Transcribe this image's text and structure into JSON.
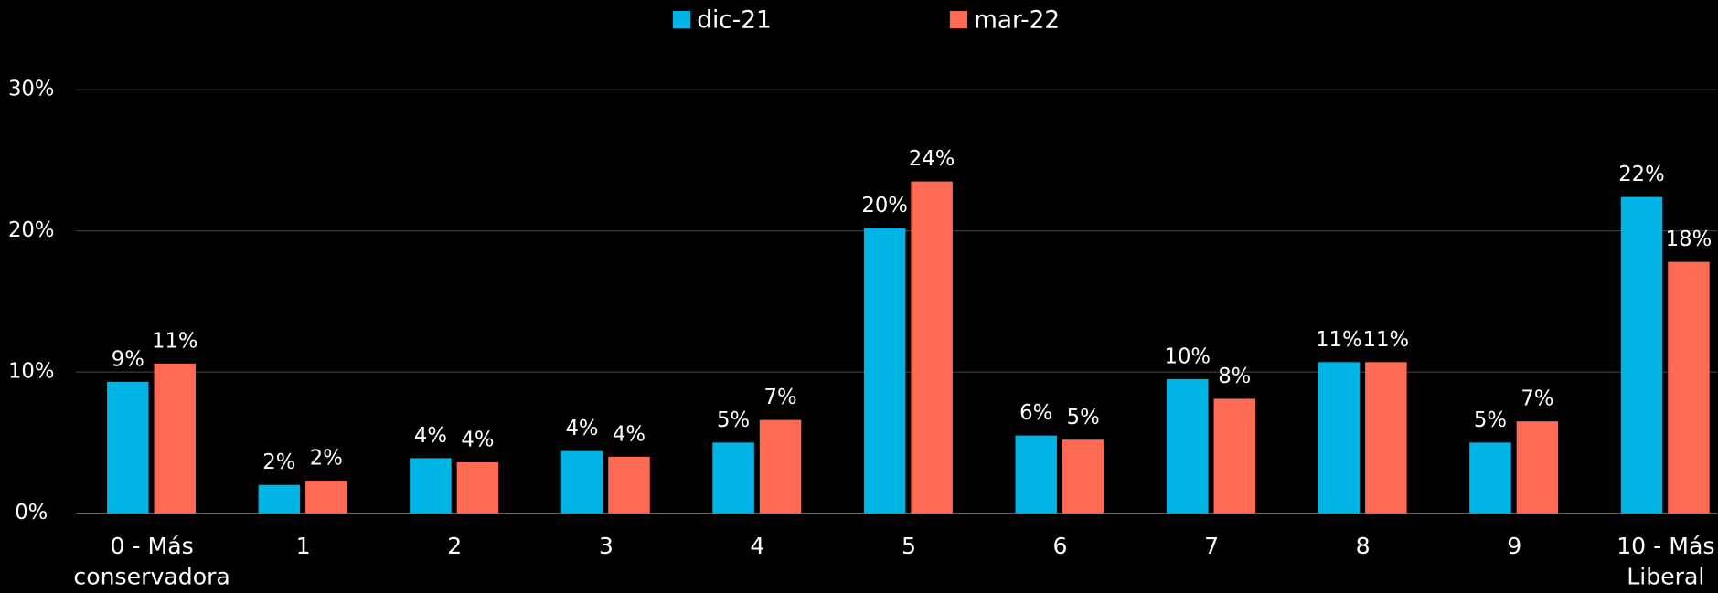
{
  "chart_data": {
    "type": "bar",
    "categories": [
      "0 - Más conservadora",
      "1",
      "2",
      "3",
      "4",
      "5",
      "6",
      "7",
      "8",
      "9",
      "10 - Más Liberal"
    ],
    "series": [
      {
        "name": "dic-21",
        "color": "#00b4e6",
        "values": [
          9.3,
          2.0,
          3.9,
          4.4,
          5.0,
          20.2,
          5.5,
          9.5,
          10.7,
          5.0,
          22.4
        ],
        "value_labels": [
          "9%",
          "2%",
          "4%",
          "4%",
          "5%",
          "20%",
          "6%",
          "10%",
          "11%",
          "5%",
          "22%"
        ]
      },
      {
        "name": "mar-22",
        "color": "#ff6a55",
        "values": [
          10.6,
          2.3,
          3.6,
          4.0,
          6.6,
          23.5,
          5.2,
          8.1,
          10.7,
          6.5,
          17.8
        ],
        "value_labels": [
          "11%",
          "2%",
          "4%",
          "4%",
          "7%",
          "24%",
          "5%",
          "8%",
          "11%",
          "7%",
          "18%"
        ]
      }
    ],
    "ylim": [
      0,
      30
    ],
    "yticks": [
      {
        "value": 0,
        "label": "0%"
      },
      {
        "value": 10,
        "label": "10%"
      },
      {
        "value": 20,
        "label": "20%"
      },
      {
        "value": 30,
        "label": "30%"
      }
    ],
    "grid": true,
    "legend": "top"
  }
}
